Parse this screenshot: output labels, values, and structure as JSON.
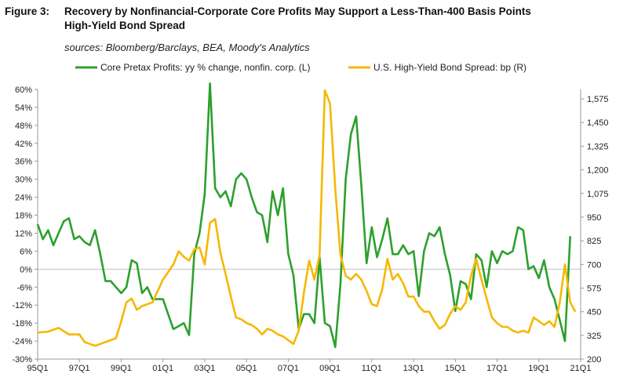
{
  "header": {
    "figure_label": "Figure 3:",
    "title_line1": "Recovery by Nonfinancial-Corporate Core Profits May Support a Less-Than-400 Basis Points",
    "title_line2": "High-Yield Bond Spread",
    "sources": "sources: Bloomberg/Barclays, BEA, Moody's Analytics"
  },
  "chart_data": {
    "type": "line",
    "left_axis": {
      "ylim": [
        -30,
        60
      ],
      "ticks": [
        "-30%",
        "-24%",
        "-18%",
        "-12%",
        "-6%",
        "0%",
        "6%",
        "12%",
        "18%",
        "24%",
        "30%",
        "36%",
        "42%",
        "48%",
        "54%",
        "60%"
      ]
    },
    "right_axis": {
      "ylim": [
        200,
        1625
      ],
      "ticks": [
        "200",
        "325",
        "450",
        "575",
        "700",
        "825",
        "950",
        "1,075",
        "1,200",
        "1,325",
        "1,450",
        "1,575"
      ]
    },
    "x_axis": {
      "xlim": [
        1995.0,
        2021.0
      ],
      "ticks": [
        "95Q1",
        "97Q1",
        "99Q1",
        "01Q1",
        "03Q1",
        "05Q1",
        "07Q1",
        "09Q1",
        "11Q1",
        "13Q1",
        "15Q1",
        "17Q1",
        "19Q1",
        "21Q1"
      ]
    },
    "colors": {
      "profits": "#2ca02c",
      "spread": "#f5b800"
    },
    "series": [
      {
        "name": "Core Pretax Profits: yy % change, nonfin. corp. (L)",
        "axis": "left",
        "points": [
          [
            1995.0,
            15
          ],
          [
            1995.25,
            10
          ],
          [
            1995.5,
            13
          ],
          [
            1995.75,
            8
          ],
          [
            1996.0,
            12
          ],
          [
            1996.25,
            16
          ],
          [
            1996.5,
            17
          ],
          [
            1996.75,
            10
          ],
          [
            1997.0,
            11
          ],
          [
            1997.25,
            9
          ],
          [
            1997.5,
            8
          ],
          [
            1997.75,
            13
          ],
          [
            1998.0,
            5
          ],
          [
            1998.25,
            -4
          ],
          [
            1998.5,
            -4
          ],
          [
            1998.75,
            -6
          ],
          [
            1999.0,
            -8
          ],
          [
            1999.25,
            -6
          ],
          [
            1999.5,
            3
          ],
          [
            1999.75,
            2
          ],
          [
            2000.0,
            -8
          ],
          [
            2000.25,
            -6
          ],
          [
            2000.5,
            -10
          ],
          [
            2000.75,
            -10
          ],
          [
            2001.0,
            -10
          ],
          [
            2001.25,
            -15
          ],
          [
            2001.5,
            -20
          ],
          [
            2001.75,
            -19
          ],
          [
            2002.0,
            -18
          ],
          [
            2002.25,
            -22
          ],
          [
            2002.5,
            5
          ],
          [
            2002.75,
            12
          ],
          [
            2003.0,
            25
          ],
          [
            2003.25,
            62
          ],
          [
            2003.5,
            27
          ],
          [
            2003.75,
            24
          ],
          [
            2004.0,
            26
          ],
          [
            2004.25,
            21
          ],
          [
            2004.5,
            30
          ],
          [
            2004.75,
            32
          ],
          [
            2005.0,
            30
          ],
          [
            2005.25,
            24
          ],
          [
            2005.5,
            19
          ],
          [
            2005.75,
            18
          ],
          [
            2006.0,
            9
          ],
          [
            2006.25,
            26
          ],
          [
            2006.5,
            18
          ],
          [
            2006.75,
            27
          ],
          [
            2007.0,
            5
          ],
          [
            2007.25,
            -2
          ],
          [
            2007.5,
            -20
          ],
          [
            2007.75,
            -15
          ],
          [
            2008.0,
            -15
          ],
          [
            2008.25,
            -18
          ],
          [
            2008.5,
            4
          ],
          [
            2008.75,
            -18
          ],
          [
            2009.0,
            -19
          ],
          [
            2009.25,
            -26
          ],
          [
            2009.5,
            -5
          ],
          [
            2009.75,
            30
          ],
          [
            2010.0,
            45
          ],
          [
            2010.25,
            51
          ],
          [
            2010.5,
            28
          ],
          [
            2010.75,
            2
          ],
          [
            2011.0,
            14
          ],
          [
            2011.25,
            4
          ],
          [
            2011.5,
            10
          ],
          [
            2011.75,
            17
          ],
          [
            2012.0,
            5
          ],
          [
            2012.25,
            5
          ],
          [
            2012.5,
            8
          ],
          [
            2012.75,
            5
          ],
          [
            2013.0,
            6
          ],
          [
            2013.25,
            -9
          ],
          [
            2013.5,
            6
          ],
          [
            2013.75,
            12
          ],
          [
            2014.0,
            11
          ],
          [
            2014.25,
            14
          ],
          [
            2014.5,
            5
          ],
          [
            2014.75,
            -2
          ],
          [
            2015.0,
            -14
          ],
          [
            2015.25,
            -4
          ],
          [
            2015.5,
            -5
          ],
          [
            2015.75,
            -10
          ],
          [
            2016.0,
            5
          ],
          [
            2016.25,
            3
          ],
          [
            2016.5,
            -6
          ],
          [
            2016.75,
            6
          ],
          [
            2017.0,
            2
          ],
          [
            2017.25,
            6
          ],
          [
            2017.5,
            5
          ],
          [
            2017.75,
            6
          ],
          [
            2018.0,
            14
          ],
          [
            2018.25,
            13
          ],
          [
            2018.5,
            0
          ],
          [
            2018.75,
            1
          ],
          [
            2019.0,
            -3
          ],
          [
            2019.25,
            3
          ],
          [
            2019.5,
            -6
          ],
          [
            2019.75,
            -10
          ],
          [
            2020.0,
            -17
          ],
          [
            2020.25,
            -24
          ],
          [
            2020.5,
            11
          ]
        ]
      },
      {
        "name": "U.S. High-Yield Bond Spread: bp (R)",
        "axis": "right",
        "points": [
          [
            1995.0,
            340
          ],
          [
            1995.5,
            345
          ],
          [
            1996.0,
            365
          ],
          [
            1996.5,
            330
          ],
          [
            1997.0,
            330
          ],
          [
            1997.25,
            290
          ],
          [
            1997.75,
            270
          ],
          [
            1998.25,
            290
          ],
          [
            1998.5,
            300
          ],
          [
            1998.75,
            310
          ],
          [
            1999.0,
            400
          ],
          [
            1999.25,
            500
          ],
          [
            1999.5,
            520
          ],
          [
            1999.75,
            460
          ],
          [
            2000.0,
            480
          ],
          [
            2000.5,
            500
          ],
          [
            2000.75,
            560
          ],
          [
            2001.0,
            620
          ],
          [
            2001.25,
            660
          ],
          [
            2001.5,
            700
          ],
          [
            2001.75,
            770
          ],
          [
            2002.0,
            740
          ],
          [
            2002.25,
            720
          ],
          [
            2002.5,
            780
          ],
          [
            2002.75,
            790
          ],
          [
            2003.0,
            700
          ],
          [
            2003.25,
            920
          ],
          [
            2003.5,
            940
          ],
          [
            2003.75,
            760
          ],
          [
            2004.0,
            650
          ],
          [
            2004.25,
            530
          ],
          [
            2004.5,
            420
          ],
          [
            2004.75,
            410
          ],
          [
            2005.0,
            390
          ],
          [
            2005.25,
            380
          ],
          [
            2005.5,
            360
          ],
          [
            2005.75,
            330
          ],
          [
            2006.0,
            360
          ],
          [
            2006.25,
            350
          ],
          [
            2006.5,
            330
          ],
          [
            2006.75,
            320
          ],
          [
            2007.0,
            300
          ],
          [
            2007.25,
            280
          ],
          [
            2007.5,
            350
          ],
          [
            2007.75,
            550
          ],
          [
            2008.0,
            720
          ],
          [
            2008.25,
            620
          ],
          [
            2008.5,
            750
          ],
          [
            2008.75,
            1620
          ],
          [
            2009.0,
            1550
          ],
          [
            2009.25,
            1100
          ],
          [
            2009.5,
            750
          ],
          [
            2009.75,
            640
          ],
          [
            2010.0,
            620
          ],
          [
            2010.25,
            650
          ],
          [
            2010.5,
            620
          ],
          [
            2010.75,
            560
          ],
          [
            2011.0,
            490
          ],
          [
            2011.25,
            480
          ],
          [
            2011.5,
            570
          ],
          [
            2011.75,
            730
          ],
          [
            2012.0,
            620
          ],
          [
            2012.25,
            650
          ],
          [
            2012.5,
            600
          ],
          [
            2012.75,
            530
          ],
          [
            2013.0,
            530
          ],
          [
            2013.25,
            480
          ],
          [
            2013.5,
            450
          ],
          [
            2013.75,
            450
          ],
          [
            2014.0,
            400
          ],
          [
            2014.25,
            360
          ],
          [
            2014.5,
            380
          ],
          [
            2014.75,
            440
          ],
          [
            2015.0,
            480
          ],
          [
            2015.25,
            460
          ],
          [
            2015.5,
            500
          ],
          [
            2015.75,
            640
          ],
          [
            2016.0,
            730
          ],
          [
            2016.25,
            620
          ],
          [
            2016.5,
            520
          ],
          [
            2016.75,
            420
          ],
          [
            2017.0,
            390
          ],
          [
            2017.25,
            370
          ],
          [
            2017.5,
            370
          ],
          [
            2017.75,
            350
          ],
          [
            2018.0,
            340
          ],
          [
            2018.25,
            350
          ],
          [
            2018.5,
            340
          ],
          [
            2018.75,
            420
          ],
          [
            2019.0,
            400
          ],
          [
            2019.25,
            380
          ],
          [
            2019.5,
            400
          ],
          [
            2019.75,
            370
          ],
          [
            2020.0,
            500
          ],
          [
            2020.25,
            700
          ],
          [
            2020.5,
            500
          ],
          [
            2020.75,
            450
          ]
        ]
      }
    ]
  }
}
